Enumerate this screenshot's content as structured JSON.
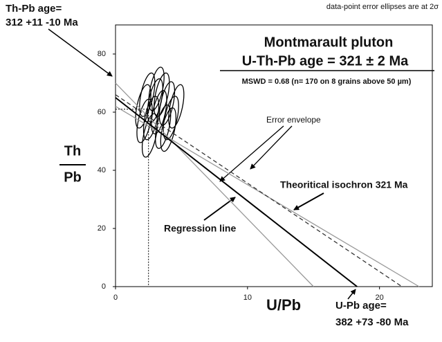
{
  "chart_data": {
    "type": "line",
    "title": "Montmarault pluton",
    "subtitle": "U-Th-Pb age = 321 ± 2 Ma",
    "stats": "MSWD = 0.68  (n= 170 on 8 grains above 50 µm)",
    "note": "data-point error ellipses are at 2σ",
    "x_label": "U/Pb",
    "y_label_top": "Th",
    "y_label_bottom": "Pb",
    "annotations": {
      "thpb_1": "Th-Pb age=",
      "thpb_2": "312 +11 -10 Ma",
      "upb_1": "U-Pb age=",
      "upb_2": "382 +73 -80 Ma",
      "envelope": "Error envelope",
      "isochron": "Theoritical isochron 321 Ma",
      "regression": "Regression line"
    },
    "xlim": [
      0,
      24
    ],
    "ylim": [
      0,
      90
    ],
    "xticks": [
      0,
      10,
      20
    ],
    "yticks": [
      0,
      20,
      40,
      60,
      80
    ],
    "series": [
      {
        "color": "#999999",
        "dash": false,
        "x": [
          0,
          15
        ],
        "values": [
          70,
          0
        ]
      },
      {
        "color": "#999999",
        "dash": false,
        "x": [
          0,
          23
        ],
        "values": [
          62,
          0
        ]
      },
      {
        "color": "#333333",
        "dash": true,
        "x": [
          0,
          21.7
        ],
        "values": [
          66,
          0
        ]
      },
      {
        "color": "#000000",
        "dash": false,
        "x": [
          0,
          18.3
        ],
        "values": [
          65,
          0
        ]
      }
    ],
    "guides": {
      "x": 2.5,
      "y": 61
    },
    "ellipses": {
      "color": "#000000",
      "x": [
        2.1,
        2.4,
        2.7,
        3.0,
        3.3,
        3.6,
        3.9,
        4.2,
        4.6,
        2.6,
        3.1,
        3.5,
        4.0,
        2.2
      ],
      "values": [
        62,
        66,
        58,
        64,
        60,
        55,
        63,
        58,
        62,
        52,
        68,
        66,
        54,
        57
      ]
    }
  }
}
